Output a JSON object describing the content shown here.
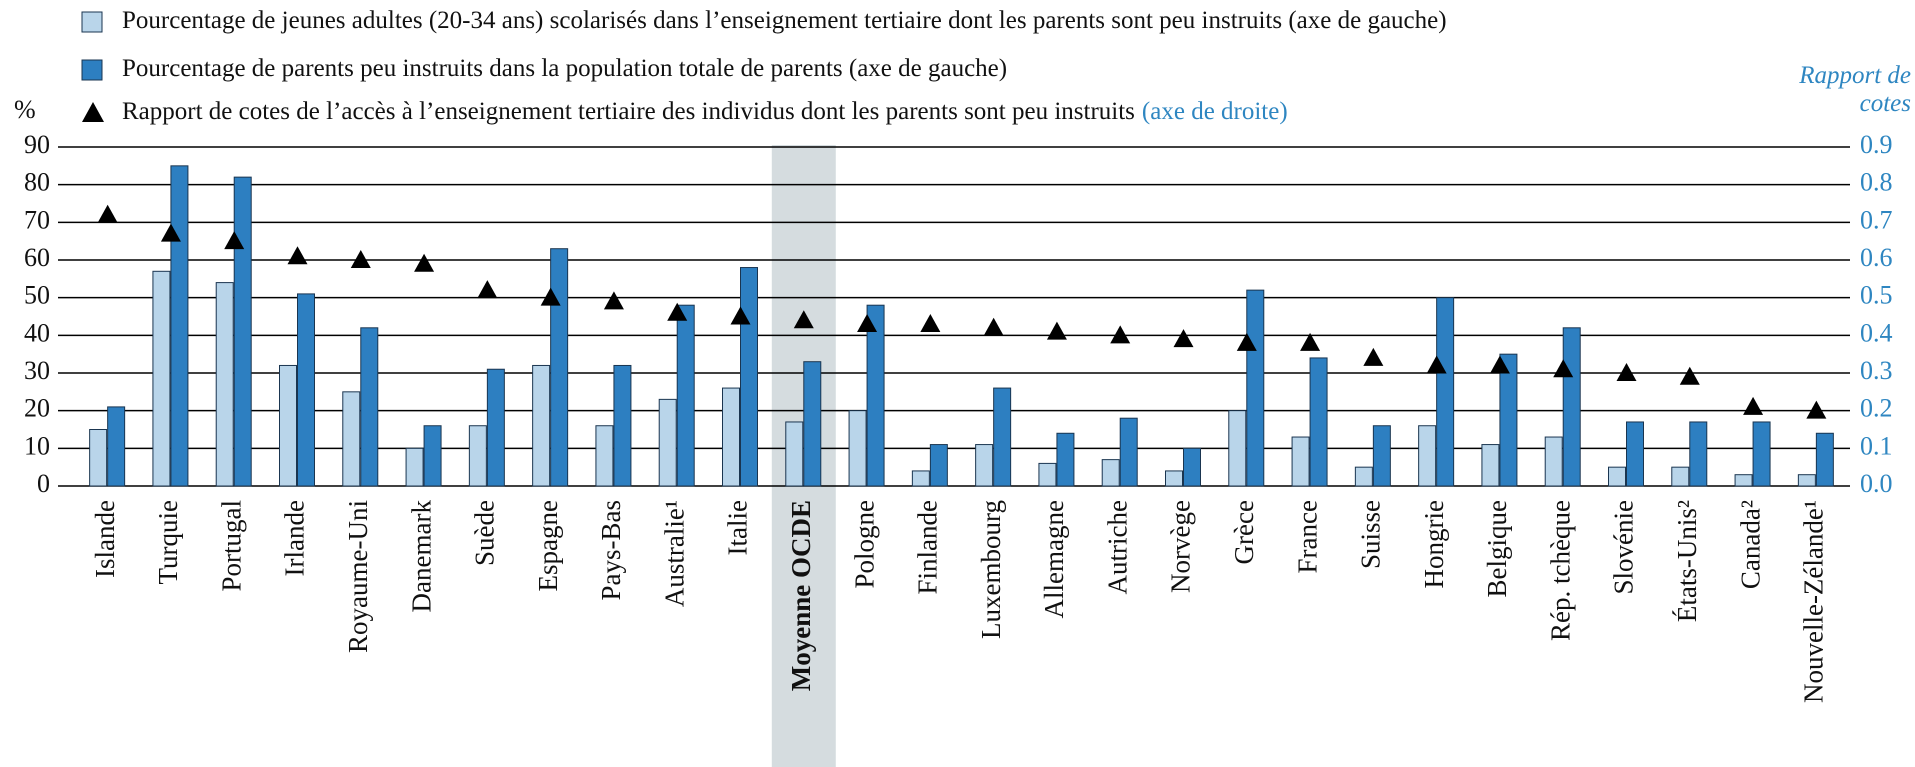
{
  "chart_data": {
    "type": "bar_line",
    "ylabel": "%",
    "y2label": "Rapport de cotes",
    "y2_note": "(axe de droite)",
    "highlight": "Moyenne OCDE",
    "categories": [
      "Islande",
      "Turquie",
      "Portugal",
      "Irlande",
      "Royaume-Uni",
      "Danemark",
      "Suède",
      "Espagne",
      "Pays-Bas",
      "Australie¹",
      "Italie",
      "Moyenne OCDE",
      "Pologne",
      "Finlande",
      "Luxembourg",
      "Allemagne",
      "Autriche",
      "Norvège",
      "Grèce",
      "France",
      "Suisse",
      "Hongrie",
      "Belgique",
      "Rép. tchèque",
      "Slovénie",
      "États-Unis²",
      "Canada²",
      "Nouvelle-Zélande¹"
    ],
    "series": [
      {
        "name": "Pourcentage de jeunes adultes (20-34 ans) scolarisés dans l’enseignement tertiaire dont les parents sont peu instruits (axe de gauche)",
        "color": "#b9d5ea",
        "type": "bar",
        "values": [
          15,
          57,
          54,
          32,
          25,
          10,
          16,
          32,
          16,
          23,
          26,
          17,
          20,
          4,
          11,
          6,
          7,
          4,
          20,
          13,
          5,
          16,
          11,
          13,
          5,
          5,
          3,
          3
        ]
      },
      {
        "name": "Pourcentage de parents peu instruits dans la population totale de parents (axe de gauche)",
        "color": "#2d7fc1",
        "type": "bar",
        "values": [
          21,
          85,
          82,
          51,
          42,
          16,
          31,
          63,
          32,
          48,
          58,
          33,
          48,
          11,
          26,
          14,
          18,
          10,
          52,
          34,
          16,
          50,
          35,
          42,
          17,
          17,
          17,
          14
        ]
      },
      {
        "name": "Rapport de cotes de l’accès à l’enseignement tertiaire des individus dont les parents sont peu instruits",
        "color": "#000000",
        "type": "marker",
        "axis": "y2",
        "values": [
          0.72,
          0.67,
          0.65,
          0.61,
          0.6,
          0.59,
          0.52,
          0.5,
          0.49,
          0.46,
          0.45,
          0.44,
          0.43,
          0.43,
          0.42,
          0.41,
          0.4,
          0.39,
          0.38,
          0.38,
          0.34,
          0.32,
          0.32,
          0.31,
          0.3,
          0.29,
          0.21,
          0.2
        ]
      }
    ],
    "ylim": [
      0,
      90
    ],
    "yticks": [
      0,
      10,
      20,
      30,
      40,
      50,
      60,
      70,
      80,
      90
    ],
    "y2lim": [
      0,
      0.9
    ],
    "y2ticks": [
      {
        "value": 0,
        "label": "0.0"
      },
      0.1,
      0.2,
      0.3,
      0.4,
      0.5,
      0.6,
      0.7,
      0.8,
      0.9
    ],
    "grid": true,
    "axis_color": "#2e86c1"
  }
}
